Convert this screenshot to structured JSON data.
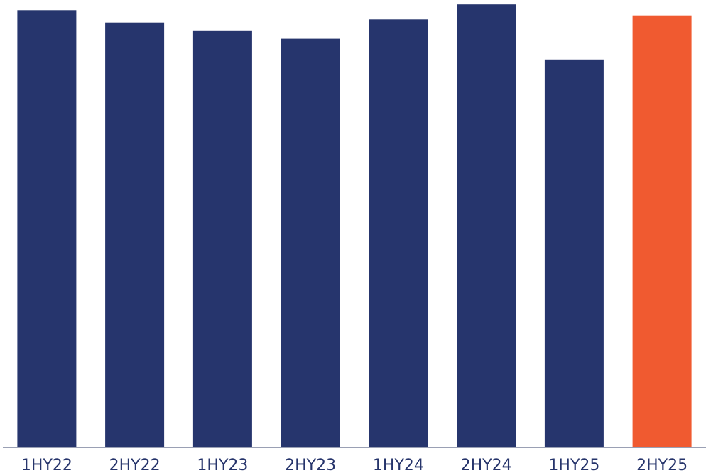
{
  "chart_data": {
    "type": "bar",
    "categories": [
      "1HY22",
      "2HY22",
      "1HY23",
      "2HY23",
      "1HY24",
      "2HY24",
      "1HY25",
      "2HY25"
    ],
    "values": [
      99.2,
      96.4,
      94.6,
      92.7,
      97.1,
      100.5,
      88.0,
      98.0
    ],
    "highlight_index": 7,
    "ylim": [
      0,
      101.5
    ],
    "grid": false,
    "legend": "none",
    "colors": {
      "bar": "#26356d",
      "highlight": "#f05a30",
      "axis": "#9aa0b4",
      "tick_label": "#26346b"
    }
  }
}
